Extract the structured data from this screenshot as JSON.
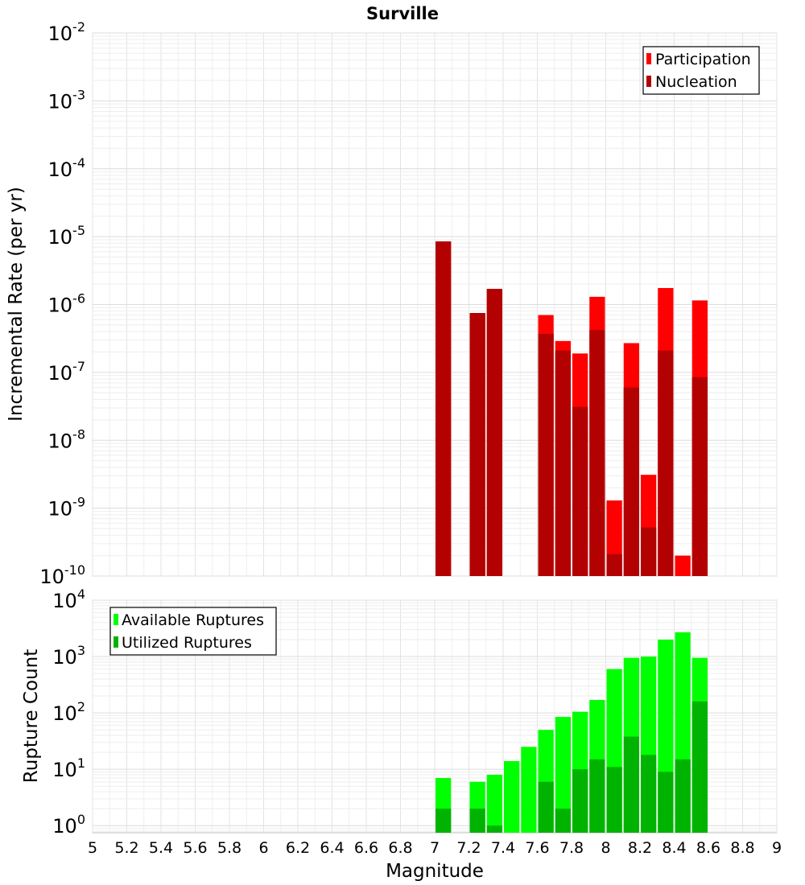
{
  "chart_data": [
    {
      "type": "bar",
      "title": "Surville",
      "xlabel": "",
      "ylabel": "Incremental Rate (per yr)",
      "yscale": "log",
      "ylim": [
        1e-10,
        0.01
      ],
      "xlim": [
        5,
        9
      ],
      "y_ticks": [
        {
          "base": "10",
          "exp": "-2",
          "value": 0.01
        },
        {
          "base": "10",
          "exp": "-3",
          "value": 0.001
        },
        {
          "base": "10",
          "exp": "-4",
          "value": 0.0001
        },
        {
          "base": "10",
          "exp": "-5",
          "value": 1e-05
        },
        {
          "base": "10",
          "exp": "-6",
          "value": 1e-06
        },
        {
          "base": "10",
          "exp": "-7",
          "value": 1e-07
        },
        {
          "base": "10",
          "exp": "-8",
          "value": 1e-08
        },
        {
          "base": "10",
          "exp": "-9",
          "value": 1e-09
        },
        {
          "base": "10",
          "exp": "-10",
          "value": 1e-10
        }
      ],
      "grid": true,
      "legend_position": "top-right",
      "series": [
        {
          "name": "Participation",
          "color": "#ff0000",
          "x": [
            7.05,
            7.25,
            7.35,
            7.65,
            7.75,
            7.85,
            7.95,
            8.05,
            8.15,
            8.25,
            8.35,
            8.45,
            8.55
          ],
          "values": [
            8.5e-06,
            7.5e-07,
            1.7e-06,
            7e-07,
            2.9e-07,
            1.9e-07,
            1.3e-06,
            1.3e-09,
            2.7e-07,
            3.1e-09,
            1.75e-06,
            2e-10,
            1.15e-06
          ]
        },
        {
          "name": "Nucleation",
          "color": "#b30000",
          "x": [
            7.05,
            7.25,
            7.35,
            7.65,
            7.75,
            7.85,
            7.95,
            8.05,
            8.15,
            8.25,
            8.35,
            8.45,
            8.55
          ],
          "values": [
            8.5e-06,
            7.5e-07,
            1.7e-06,
            3.7e-07,
            2.1e-07,
            3.1e-08,
            4.2e-07,
            2.1e-10,
            6e-08,
            5.2e-10,
            2.1e-07,
            null,
            8.5e-08
          ]
        }
      ]
    },
    {
      "type": "bar",
      "title": "",
      "xlabel": "Magnitude",
      "ylabel": "Rupture Count",
      "yscale": "log",
      "ylim": [
        0.75,
        10000
      ],
      "xlim": [
        5,
        9
      ],
      "y_ticks": [
        {
          "base": "10",
          "exp": "4",
          "value": 10000
        },
        {
          "base": "10",
          "exp": "3",
          "value": 1000
        },
        {
          "base": "10",
          "exp": "2",
          "value": 100
        },
        {
          "base": "10",
          "exp": "1",
          "value": 10
        },
        {
          "base": "10",
          "exp": "0",
          "value": 1
        }
      ],
      "x_ticks": [
        "5",
        "5.2",
        "5.4",
        "5.6",
        "5.8",
        "6",
        "6.2",
        "6.4",
        "6.6",
        "6.8",
        "7",
        "7.2",
        "7.4",
        "7.6",
        "7.8",
        "8",
        "8.2",
        "8.4",
        "8.6",
        "8.8",
        "9"
      ],
      "grid": true,
      "legend_position": "top-left",
      "series": [
        {
          "name": "Available Ruptures",
          "color": "#00ff00",
          "x": [
            7.05,
            7.25,
            7.35,
            7.45,
            7.55,
            7.65,
            7.75,
            7.85,
            7.95,
            8.05,
            8.15,
            8.25,
            8.35,
            8.45,
            8.55
          ],
          "values": [
            7,
            6,
            8,
            14,
            25,
            50,
            85,
            105,
            170,
            600,
            950,
            1000,
            2000,
            2700,
            950
          ]
        },
        {
          "name": "Utilized Ruptures",
          "color": "#00b300",
          "x": [
            7.05,
            7.25,
            7.35,
            7.45,
            7.55,
            7.65,
            7.75,
            7.85,
            7.95,
            8.05,
            8.15,
            8.25,
            8.35,
            8.45,
            8.55
          ],
          "values": [
            2,
            2,
            1,
            null,
            null,
            6,
            2,
            10,
            15,
            11,
            38,
            18,
            9,
            15,
            160
          ]
        }
      ]
    }
  ]
}
